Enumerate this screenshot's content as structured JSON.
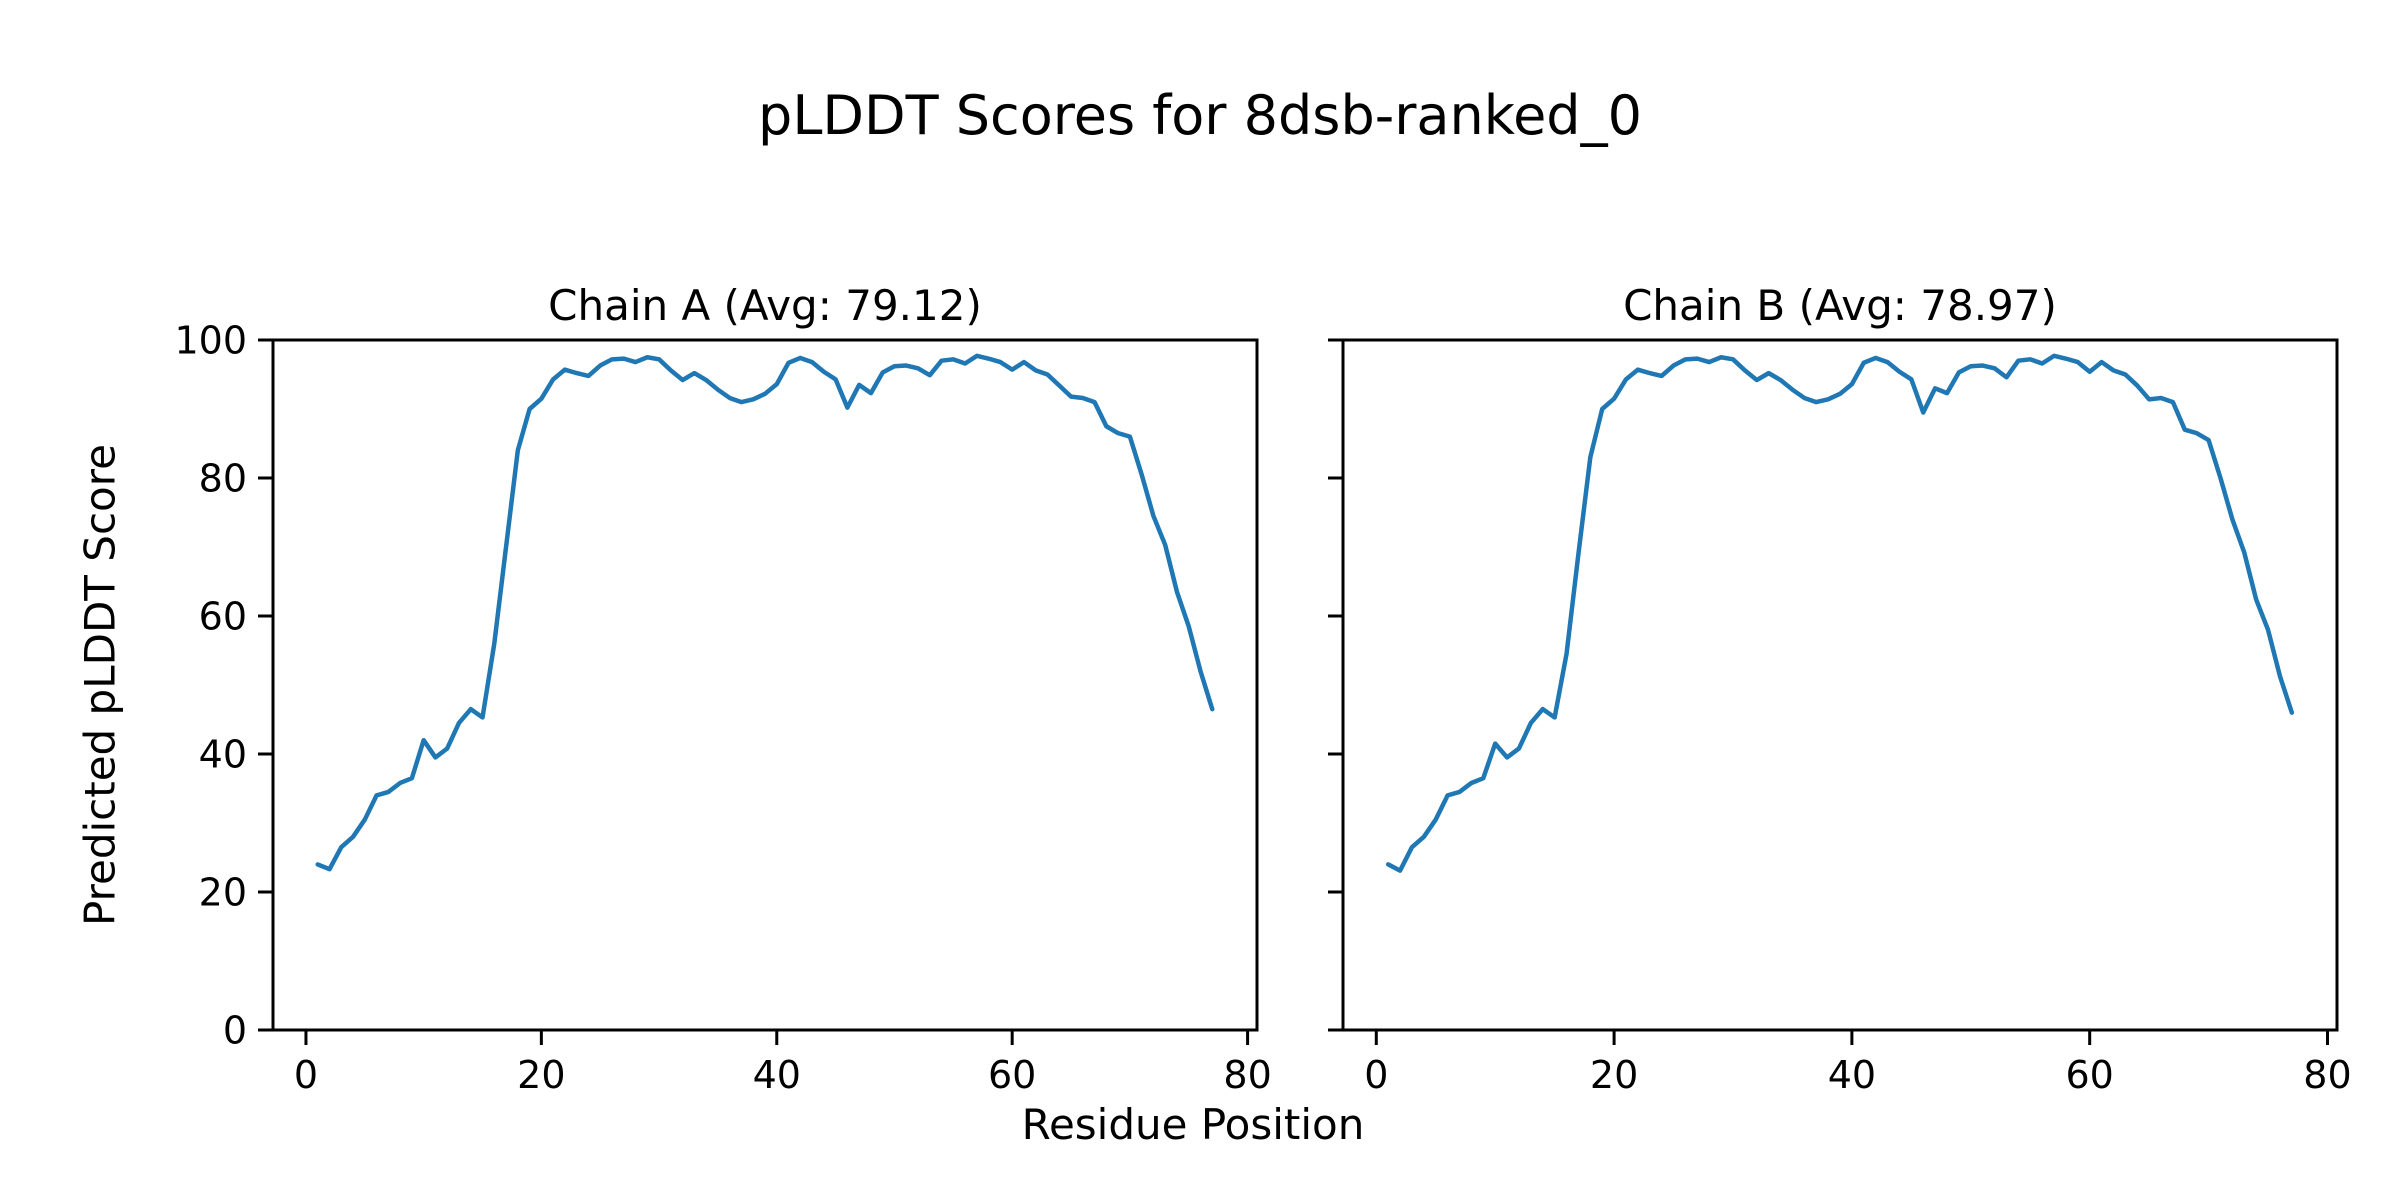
{
  "figure": {
    "suptitle": "pLDDT Scores for 8dsb-ranked_0",
    "xlabel": "Residue Position",
    "ylabel": "Predicted pLDDT Score",
    "background_color": "#ffffff",
    "text_color": "#000000",
    "line_color": "#1f77b4"
  },
  "chart_data": [
    {
      "type": "line",
      "chain": "A",
      "title": "Chain A (Avg: 79.12)",
      "avg": 79.12,
      "xlabel": "Residue Position",
      "ylabel": "Predicted pLDDT Score",
      "xlim": [
        -2.8,
        80.8
      ],
      "ylim": [
        0,
        100
      ],
      "xticks": [
        0,
        20,
        40,
        60,
        80
      ],
      "yticks": [
        0,
        20,
        40,
        60,
        80,
        100
      ],
      "ytick_labels_visible": true,
      "grid": false,
      "legend_position": "none",
      "line_color": "#1f77b4",
      "x": [
        1,
        2,
        3,
        4,
        5,
        6,
        7,
        8,
        9,
        10,
        11,
        12,
        13,
        14,
        15,
        16,
        17,
        18,
        19,
        20,
        21,
        22,
        23,
        24,
        25,
        26,
        27,
        28,
        29,
        30,
        31,
        32,
        33,
        34,
        35,
        36,
        37,
        38,
        39,
        40,
        41,
        42,
        43,
        44,
        45,
        46,
        47,
        48,
        49,
        50,
        51,
        52,
        53,
        54,
        55,
        56,
        57,
        58,
        59,
        60,
        61,
        62,
        63,
        64,
        65,
        66,
        67,
        68,
        69,
        70,
        71,
        72,
        73,
        74,
        75,
        76,
        77
      ],
      "values": [
        24.0,
        23.3,
        26.5,
        28.0,
        30.5,
        34.0,
        34.5,
        35.8,
        36.5,
        42.0,
        39.5,
        40.8,
        44.5,
        46.5,
        45.3,
        56.0,
        70.0,
        84.0,
        90.0,
        91.5,
        94.3,
        95.7,
        95.2,
        94.8,
        96.3,
        97.2,
        97.3,
        96.8,
        97.5,
        97.2,
        95.6,
        94.2,
        95.2,
        94.2,
        92.8,
        91.6,
        91.0,
        91.4,
        92.2,
        93.6,
        96.7,
        97.4,
        96.8,
        95.4,
        94.3,
        90.2,
        93.5,
        92.3,
        95.3,
        96.2,
        96.3,
        95.9,
        94.9,
        97.0,
        97.2,
        96.6,
        97.7,
        97.3,
        96.8,
        95.7,
        96.8,
        95.6,
        95.0,
        93.4,
        91.8,
        91.6,
        91.0,
        87.5,
        86.5,
        86.0,
        80.5,
        74.5,
        70.3,
        63.5,
        58.5,
        52.0,
        46.5
      ]
    },
    {
      "type": "line",
      "chain": "B",
      "title": "Chain B (Avg: 78.97)",
      "avg": 78.97,
      "xlabel": "Residue Position",
      "ylabel": "Predicted pLDDT Score",
      "xlim": [
        -2.8,
        80.8
      ],
      "ylim": [
        0,
        100
      ],
      "xticks": [
        0,
        20,
        40,
        60,
        80
      ],
      "yticks": [
        0,
        20,
        40,
        60,
        80,
        100
      ],
      "ytick_labels_visible": false,
      "grid": false,
      "legend_position": "none",
      "line_color": "#1f77b4",
      "x": [
        1,
        2,
        3,
        4,
        5,
        6,
        7,
        8,
        9,
        10,
        11,
        12,
        13,
        14,
        15,
        16,
        17,
        18,
        19,
        20,
        21,
        22,
        23,
        24,
        25,
        26,
        27,
        28,
        29,
        30,
        31,
        32,
        33,
        34,
        35,
        36,
        37,
        38,
        39,
        40,
        41,
        42,
        43,
        44,
        45,
        46,
        47,
        48,
        49,
        50,
        51,
        52,
        53,
        54,
        55,
        56,
        57,
        58,
        59,
        60,
        61,
        62,
        63,
        64,
        65,
        66,
        67,
        68,
        69,
        70,
        71,
        72,
        73,
        74,
        75,
        76,
        77
      ],
      "values": [
        24.0,
        23.1,
        26.5,
        28.0,
        30.5,
        34.0,
        34.5,
        35.8,
        36.5,
        41.5,
        39.5,
        40.8,
        44.5,
        46.5,
        45.3,
        54.5,
        69.0,
        83.0,
        90.0,
        91.5,
        94.3,
        95.7,
        95.2,
        94.8,
        96.3,
        97.2,
        97.3,
        96.8,
        97.5,
        97.2,
        95.6,
        94.2,
        95.2,
        94.2,
        92.8,
        91.6,
        91.0,
        91.4,
        92.2,
        93.6,
        96.7,
        97.4,
        96.8,
        95.4,
        94.3,
        89.5,
        93.0,
        92.3,
        95.3,
        96.2,
        96.3,
        95.9,
        94.6,
        97.0,
        97.2,
        96.6,
        97.7,
        97.3,
        96.8,
        95.4,
        96.8,
        95.6,
        95.0,
        93.4,
        91.4,
        91.6,
        91.0,
        87.0,
        86.5,
        85.5,
        80.0,
        74.0,
        69.2,
        62.4,
        58.0,
        51.3,
        46.0
      ]
    }
  ],
  "axes_style": {
    "spine_color": "#000000",
    "tick_color": "#000000",
    "tick_length": 15,
    "tick_label_font_px": 38
  }
}
